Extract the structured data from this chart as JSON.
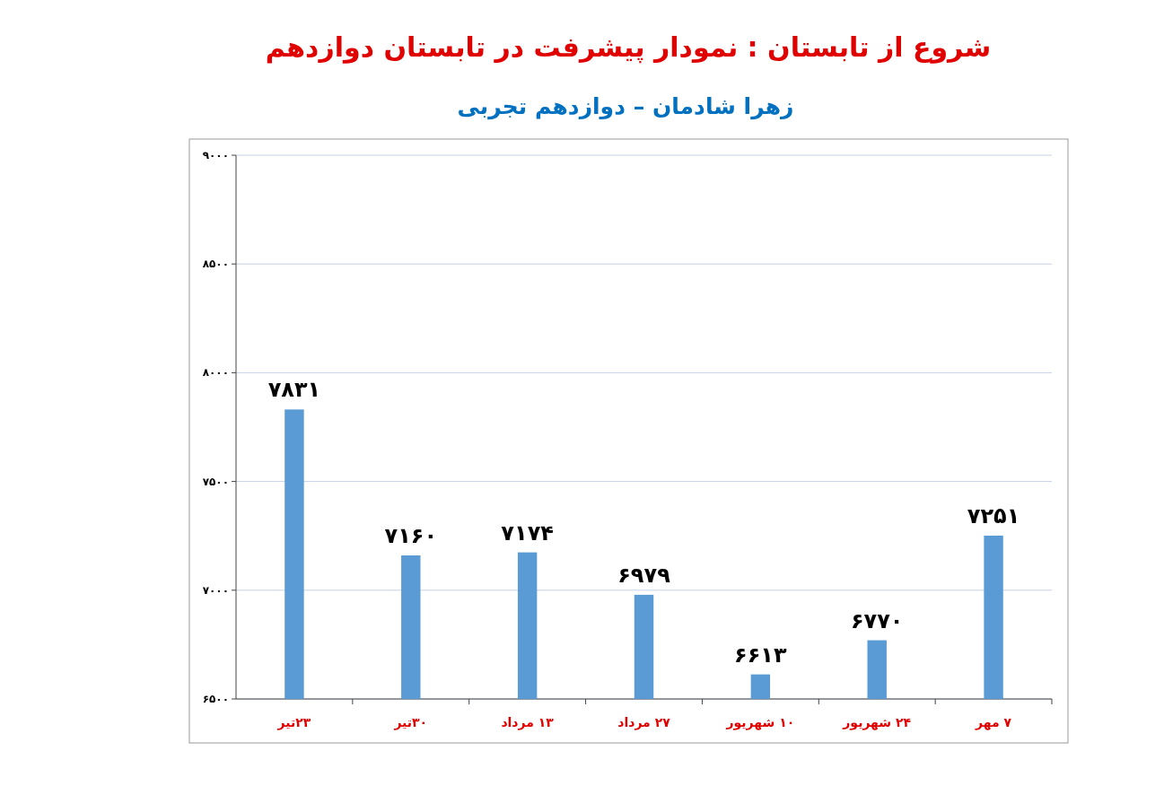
{
  "chart_data": {
    "type": "bar",
    "title": "شروع از تابستان : نمودار پیشرفت در تابستان دوازدهم",
    "subtitle": "زهرا شادمان – دوازدهم تجربی",
    "categories": [
      "۲۳تیر",
      "۳۰تیر",
      "۱۳ مرداد",
      "۲۷ مرداد",
      "۱۰ شهریور",
      "۲۴ شهریور",
      "۷ مهر"
    ],
    "values": [
      7831,
      7160,
      7174,
      6979,
      6613,
      6770,
      7251
    ],
    "value_labels": [
      "۷۸۳۱",
      "۷۱۶۰",
      "۷۱۷۴",
      "۶۹۷۹",
      "۶۶۱۳",
      "۶۷۷۰",
      "۷۲۵۱"
    ],
    "color": "#5b9bd5",
    "ylim": [
      6500,
      9000
    ],
    "yticks": [
      {
        "value": 6500,
        "label": "۶۵۰۰"
      },
      {
        "value": 7000,
        "label": "۷۰۰۰"
      },
      {
        "value": 7500,
        "label": "۷۵۰۰"
      },
      {
        "value": 8000,
        "label": "۸۰۰۰"
      },
      {
        "value": 8500,
        "label": "۸۵۰۰"
      },
      {
        "value": 9000,
        "label": "۹۰۰۰"
      }
    ],
    "grid": "y"
  }
}
